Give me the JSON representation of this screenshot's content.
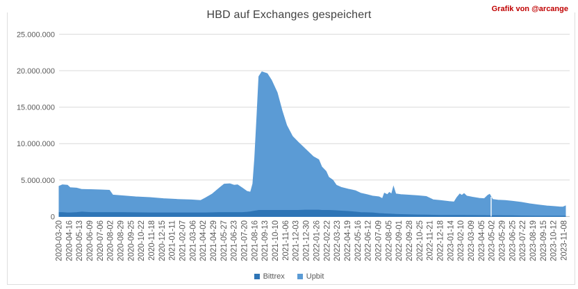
{
  "credit": "Grafik von @arcange",
  "chart_data": {
    "type": "area",
    "stacked": true,
    "title": "HBD auf Exchanges gespeichert",
    "xlabel": "",
    "ylabel": "",
    "ylim": [
      0,
      25000000
    ],
    "grid": true,
    "legend_position": "bottom",
    "background": "#FFFFFF",
    "colors": {
      "bittrex": "#2E75B6",
      "upbit": "#5B9BD5",
      "grid": "#D9D9D9",
      "axis": "#BFBFBF",
      "tick_labels": "#595959",
      "title": "#404040",
      "credit": "#C00000"
    },
    "legend_items": [
      {
        "label": "Bittrex",
        "color": "#2E75B6"
      },
      {
        "label": "Upbit",
        "color": "#5B9BD5"
      }
    ],
    "y_ticks": [
      {
        "value": 25000000,
        "label": "25.000.000"
      },
      {
        "value": 20000000,
        "label": "20.000.000"
      },
      {
        "value": 15000000,
        "label": "15.000.000"
      },
      {
        "value": 10000000,
        "label": "10.000.000"
      },
      {
        "value": 5000000,
        "label": "5.000.000"
      },
      {
        "value": 0,
        "label": "0"
      }
    ],
    "x_ticks": [
      "2020-03-20",
      "2020-04-16",
      "2020-05-13",
      "2020-06-09",
      "2020-07-06",
      "2020-08-02",
      "2020-08-29",
      "2020-09-25",
      "2020-10-22",
      "2020-11-18",
      "2020-12-15",
      "2021-01-11",
      "2021-02-07",
      "2021-03-06",
      "2021-04-02",
      "2021-04-29",
      "2021-05-27",
      "2021-06-23",
      "2021-07-20",
      "2021-08-16",
      "2021-09-13",
      "2021-10-10",
      "2021-11-06",
      "2021-12-03",
      "2021-12-30",
      "2022-01-26",
      "2022-02-22",
      "2022-03-23",
      "2022-04-19",
      "2022-05-16",
      "2022-06-12",
      "2022-07-09",
      "2022-08-05",
      "2022-09-01",
      "2022-09-28",
      "2022-10-25",
      "2022-11-21",
      "2022-12-18",
      "2023-01-14",
      "2023-02-10",
      "2023-03-09",
      "2023-04-05",
      "2023-05-02",
      "2023-05-29",
      "2023-06-25",
      "2023-07-22",
      "2023-08-19",
      "2023-09-15",
      "2023-10-12",
      "2023-11-08"
    ],
    "data_gap_date": "2023-04-27",
    "points": {
      "columns": [
        "date",
        "bittrex_hbd",
        "upbit_hbd"
      ],
      "rows": [
        [
          "2020-03-20",
          550000,
          3600000
        ],
        [
          "2020-03-29",
          550000,
          3800000
        ],
        [
          "2020-04-11",
          500000,
          3800000
        ],
        [
          "2020-04-18",
          500000,
          3450000
        ],
        [
          "2020-05-05",
          550000,
          3350000
        ],
        [
          "2020-05-19",
          620000,
          3100000
        ],
        [
          "2020-06-10",
          550000,
          3150000
        ],
        [
          "2020-07-08",
          550000,
          3100000
        ],
        [
          "2020-07-30",
          550000,
          3050000
        ],
        [
          "2020-08-08",
          550000,
          2400000
        ],
        [
          "2020-08-31",
          550000,
          2300000
        ],
        [
          "2020-10-07",
          520000,
          2180000
        ],
        [
          "2020-11-13",
          500000,
          2100000
        ],
        [
          "2020-12-19",
          500000,
          1950000
        ],
        [
          "2021-01-25",
          500000,
          1850000
        ],
        [
          "2021-03-02",
          500000,
          1780000
        ],
        [
          "2021-03-26",
          500000,
          1700000
        ],
        [
          "2021-04-08",
          500000,
          2050000
        ],
        [
          "2021-04-26",
          520000,
          2580000
        ],
        [
          "2021-05-14",
          550000,
          3350000
        ],
        [
          "2021-05-27",
          550000,
          3900000
        ],
        [
          "2021-06-11",
          550000,
          3950000
        ],
        [
          "2021-06-22",
          550000,
          3750000
        ],
        [
          "2021-07-01",
          550000,
          3800000
        ],
        [
          "2021-07-14",
          550000,
          3350000
        ],
        [
          "2021-07-26",
          600000,
          2850000
        ],
        [
          "2021-08-04",
          650000,
          2700000
        ],
        [
          "2021-08-10",
          700000,
          3800000
        ],
        [
          "2021-08-15",
          750000,
          7250000
        ],
        [
          "2021-08-21",
          800000,
          13200000
        ],
        [
          "2021-08-26",
          850000,
          18350000
        ],
        [
          "2021-09-03",
          850000,
          19000000
        ],
        [
          "2021-09-17",
          850000,
          18750000
        ],
        [
          "2021-09-28",
          850000,
          17850000
        ],
        [
          "2021-10-13",
          850000,
          16150000
        ],
        [
          "2021-10-26",
          850000,
          13650000
        ],
        [
          "2021-11-07",
          850000,
          11650000
        ],
        [
          "2021-11-22",
          850000,
          10150000
        ],
        [
          "2021-12-07",
          850000,
          9350000
        ],
        [
          "2021-12-25",
          880000,
          8420000
        ],
        [
          "2022-01-16",
          880000,
          7320000
        ],
        [
          "2022-01-30",
          880000,
          6920000
        ],
        [
          "2022-02-07",
          850000,
          5950000
        ],
        [
          "2022-02-18",
          850000,
          5350000
        ],
        [
          "2022-02-25",
          850000,
          4550000
        ],
        [
          "2022-03-08",
          820000,
          4180000
        ],
        [
          "2022-03-17",
          800000,
          3500000
        ],
        [
          "2022-03-30",
          750000,
          3250000
        ],
        [
          "2022-04-17",
          700000,
          3050000
        ],
        [
          "2022-05-06",
          620000,
          2930000
        ],
        [
          "2022-05-20",
          550000,
          2650000
        ],
        [
          "2022-06-06",
          520000,
          2480000
        ],
        [
          "2022-06-20",
          500000,
          2300000
        ],
        [
          "2022-07-07",
          420000,
          2280000
        ],
        [
          "2022-07-16",
          400000,
          2050000
        ],
        [
          "2022-07-21",
          380000,
          2820000
        ],
        [
          "2022-07-29",
          360000,
          2640000
        ],
        [
          "2022-08-03",
          350000,
          2950000
        ],
        [
          "2022-08-09",
          330000,
          2770000
        ],
        [
          "2022-08-14",
          320000,
          3780000
        ],
        [
          "2022-08-20",
          300000,
          2800000
        ],
        [
          "2022-09-02",
          280000,
          2720000
        ],
        [
          "2022-09-20",
          250000,
          2700000
        ],
        [
          "2022-10-17",
          220000,
          2630000
        ],
        [
          "2022-11-08",
          200000,
          2550000
        ],
        [
          "2022-11-26",
          180000,
          2120000
        ],
        [
          "2022-12-15",
          160000,
          2040000
        ],
        [
          "2023-01-07",
          150000,
          1900000
        ],
        [
          "2023-01-20",
          150000,
          1850000
        ],
        [
          "2023-01-27",
          150000,
          2450000
        ],
        [
          "2023-02-04",
          150000,
          2950000
        ],
        [
          "2023-02-09",
          150000,
          2750000
        ],
        [
          "2023-02-15",
          150000,
          3000000
        ],
        [
          "2023-02-22",
          140000,
          2660000
        ],
        [
          "2023-03-09",
          140000,
          2510000
        ],
        [
          "2023-03-27",
          130000,
          2370000
        ],
        [
          "2023-04-09",
          130000,
          2320000
        ],
        [
          "2023-04-18",
          120000,
          2780000
        ],
        [
          "2023-04-23",
          120000,
          2930000
        ],
        [
          "2023-05-01",
          120000,
          2230000
        ],
        [
          "2023-05-15",
          120000,
          2130000
        ],
        [
          "2023-06-03",
          110000,
          2090000
        ],
        [
          "2023-06-21",
          100000,
          2000000
        ],
        [
          "2023-07-15",
          80000,
          1870000
        ],
        [
          "2023-08-06",
          60000,
          1690000
        ],
        [
          "2023-08-28",
          50000,
          1550000
        ],
        [
          "2023-09-20",
          50000,
          1400000
        ],
        [
          "2023-10-09",
          50000,
          1330000
        ],
        [
          "2023-10-23",
          50000,
          1270000
        ],
        [
          "2023-11-01",
          50000,
          1250000
        ],
        [
          "2023-11-08",
          50000,
          1400000
        ]
      ]
    }
  }
}
